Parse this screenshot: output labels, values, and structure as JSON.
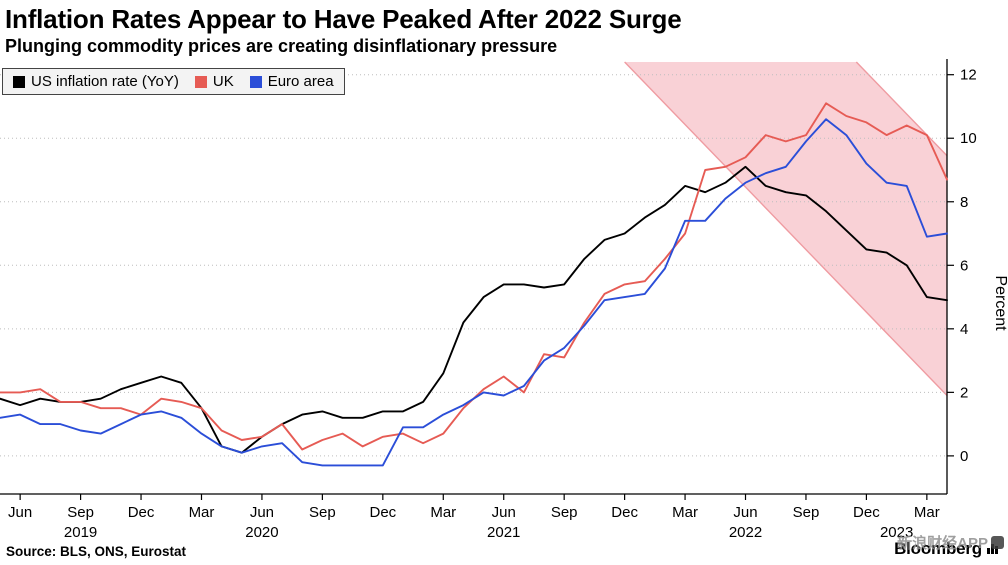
{
  "header": {
    "title": "Inflation Rates Appear to Have Peaked After 2022 Surge",
    "subtitle": "Plunging commodity prices are creating disinflationary pressure"
  },
  "legend": [
    {
      "label": "US inflation rate (YoY)",
      "color": "#000000"
    },
    {
      "label": "UK",
      "color": "#e65b54"
    },
    {
      "label": "Euro area",
      "color": "#2b4ed8"
    }
  ],
  "footer": {
    "source": "Source: BLS, ONS, Eurostat",
    "brand": "Bloomberg",
    "watermark": "新浪财经APP"
  },
  "chart_data": {
    "type": "line",
    "title": "Inflation Rates Appear to Have Peaked After 2022 Surge",
    "ylabel": "Percent",
    "ylim": [
      -1.2,
      12.4
    ],
    "yticks": [
      0,
      2,
      4,
      6,
      8,
      10,
      12
    ],
    "x_start": "2019-05",
    "x_end": "2023-04",
    "x_unit": "month",
    "xticks": [
      {
        "i": 1,
        "label": "Jun"
      },
      {
        "i": 4,
        "label": "Sep"
      },
      {
        "i": 7,
        "label": "Dec"
      },
      {
        "i": 10,
        "label": "Mar"
      },
      {
        "i": 13,
        "label": "Jun"
      },
      {
        "i": 16,
        "label": "Sep"
      },
      {
        "i": 19,
        "label": "Dec"
      },
      {
        "i": 22,
        "label": "Mar"
      },
      {
        "i": 25,
        "label": "Jun"
      },
      {
        "i": 28,
        "label": "Sep"
      },
      {
        "i": 31,
        "label": "Dec"
      },
      {
        "i": 34,
        "label": "Mar"
      },
      {
        "i": 37,
        "label": "Jun"
      },
      {
        "i": 40,
        "label": "Sep"
      },
      {
        "i": 43,
        "label": "Dec"
      },
      {
        "i": 46,
        "label": "Mar"
      }
    ],
    "year_labels": [
      {
        "i": 4,
        "label": "2019"
      },
      {
        "i": 13,
        "label": "2020"
      },
      {
        "i": 25,
        "label": "2021"
      },
      {
        "i": 37,
        "label": "2022"
      },
      {
        "i": 44.5,
        "label": "2023"
      }
    ],
    "series": [
      {
        "name": "US inflation rate (YoY)",
        "color": "#000000",
        "values": [
          1.8,
          1.6,
          1.8,
          1.7,
          1.7,
          1.8,
          2.1,
          2.3,
          2.5,
          2.3,
          1.5,
          0.3,
          0.1,
          0.6,
          1.0,
          1.3,
          1.4,
          1.2,
          1.2,
          1.4,
          1.4,
          1.7,
          2.6,
          4.2,
          5.0,
          5.4,
          5.4,
          5.3,
          5.4,
          6.2,
          6.8,
          7.0,
          7.5,
          7.9,
          8.5,
          8.3,
          8.6,
          9.1,
          8.5,
          8.3,
          8.2,
          7.7,
          7.1,
          6.5,
          6.4,
          6.0,
          5.0,
          4.9
        ]
      },
      {
        "name": "UK",
        "color": "#e65b54",
        "values": [
          2.0,
          2.0,
          2.1,
          1.7,
          1.7,
          1.5,
          1.5,
          1.3,
          1.8,
          1.7,
          1.5,
          0.8,
          0.5,
          0.6,
          1.0,
          0.2,
          0.5,
          0.7,
          0.3,
          0.6,
          0.7,
          0.4,
          0.7,
          1.5,
          2.1,
          2.5,
          2.0,
          3.2,
          3.1,
          4.2,
          5.1,
          5.4,
          5.5,
          6.2,
          7.0,
          9.0,
          9.1,
          9.4,
          10.1,
          9.9,
          10.1,
          11.1,
          10.7,
          10.5,
          10.1,
          10.4,
          10.1,
          8.7
        ]
      },
      {
        "name": "Euro area",
        "color": "#2b4ed8",
        "values": [
          1.2,
          1.3,
          1.0,
          1.0,
          0.8,
          0.7,
          1.0,
          1.3,
          1.4,
          1.2,
          0.7,
          0.3,
          0.1,
          0.3,
          0.4,
          -0.2,
          -0.3,
          -0.3,
          -0.3,
          -0.3,
          0.9,
          0.9,
          1.3,
          1.6,
          2.0,
          1.9,
          2.2,
          3.0,
          3.4,
          4.1,
          4.9,
          5.0,
          5.1,
          5.9,
          7.4,
          7.4,
          8.1,
          8.6,
          8.9,
          9.1,
          9.9,
          10.6,
          10.1,
          9.2,
          8.6,
          8.5,
          6.9,
          7.0
        ]
      }
    ],
    "band": {
      "label": "disinflationary pressure band",
      "fill": "#f8c9cf",
      "edge": "#ef9ba1",
      "polygon": [
        [
          31,
          12.4
        ],
        [
          42.5,
          12.4
        ],
        [
          47,
          9.45
        ],
        [
          47,
          1.9
        ]
      ]
    }
  }
}
